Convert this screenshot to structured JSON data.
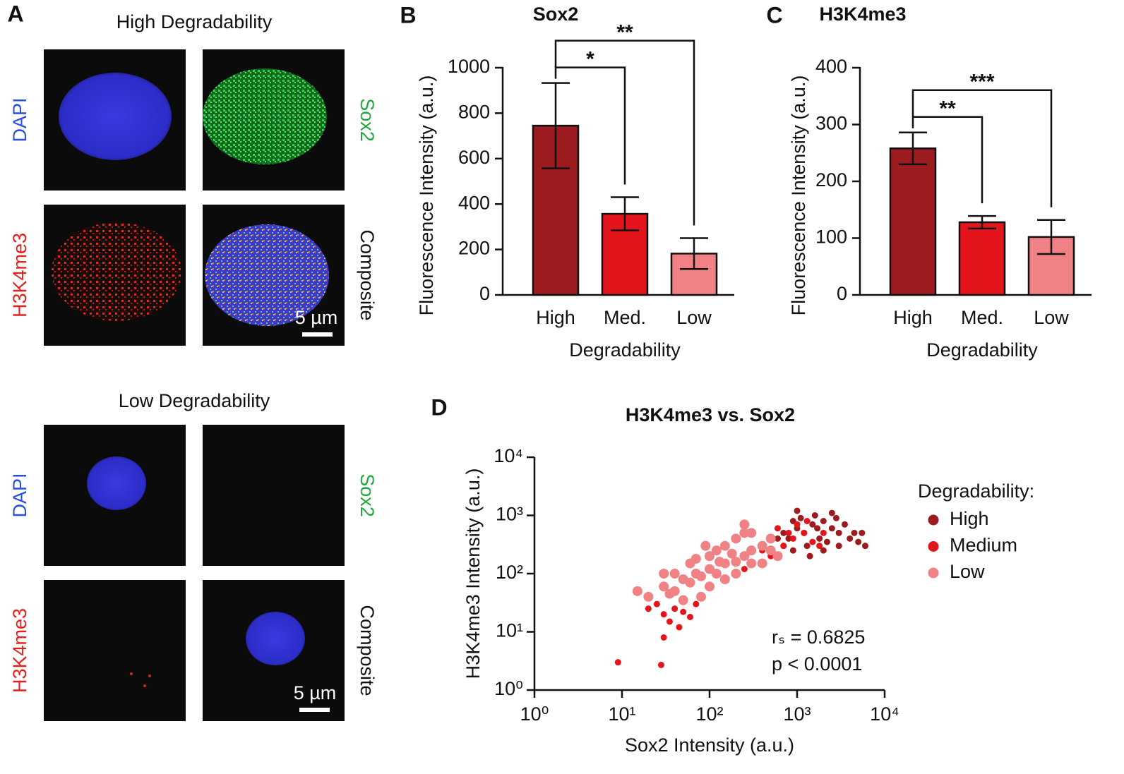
{
  "figure": {
    "panel_labels": [
      "A",
      "B",
      "C",
      "D"
    ]
  },
  "micrographs": [
    {
      "title": "High Degradability",
      "channels": [
        "DAPI",
        "Sox2",
        "H3K4me3",
        "Composite"
      ],
      "scale_bar": "5 µm"
    },
    {
      "title": "Low Degradability",
      "channels": [
        "DAPI",
        "Sox2",
        "H3K4me3",
        "Composite"
      ],
      "scale_bar": "5 µm"
    }
  ],
  "chart_data": [
    {
      "type": "bar",
      "title": "Sox2",
      "xlabel": "Degradability",
      "ylabel": "Fluorescence Intensity (a.u.)",
      "categories": [
        "High",
        "Med.",
        "Low"
      ],
      "values": [
        745,
        357,
        182
      ],
      "errors": [
        188,
        73,
        68
      ],
      "colors": [
        "#9b1b1e",
        "#e3141c",
        "#f08286"
      ],
      "ylim": [
        0,
        1000
      ],
      "yticks": [
        0,
        200,
        400,
        600,
        800,
        1000
      ],
      "comparisons": [
        {
          "from": 0,
          "to": 1,
          "label": "*"
        },
        {
          "from": 0,
          "to": 2,
          "label": "**"
        }
      ]
    },
    {
      "type": "bar",
      "title": "H3K4me3",
      "xlabel": "Degradability",
      "ylabel": "Fluorescence Intensity (a.u.)",
      "categories": [
        "High",
        "Med.",
        "Low"
      ],
      "values": [
        258,
        128,
        102
      ],
      "errors": [
        28,
        11,
        30
      ],
      "colors": [
        "#9b1b1e",
        "#e3141c",
        "#f08286"
      ],
      "ylim": [
        0,
        400
      ],
      "yticks": [
        0,
        100,
        200,
        300,
        400
      ],
      "comparisons": [
        {
          "from": 0,
          "to": 1,
          "label": "**"
        },
        {
          "from": 0,
          "to": 2,
          "label": "***"
        }
      ]
    },
    {
      "type": "scatter",
      "title": "H3K4me3 vs. Sox2",
      "xlabel": "Sox2 Intensity (a.u.)",
      "ylabel": "H3K4me3 Intensity (a.u.)",
      "xscale": "log",
      "yscale": "log",
      "xlim": [
        1,
        10000
      ],
      "ylim": [
        1,
        10000
      ],
      "xticks": [
        {
          "value": 1,
          "label": "10⁰"
        },
        {
          "value": 10,
          "label": "10¹"
        },
        {
          "value": 100,
          "label": "10²"
        },
        {
          "value": 1000,
          "label": "10³"
        },
        {
          "value": 10000,
          "label": "10⁴"
        }
      ],
      "yticks": [
        {
          "value": 1,
          "label": "10⁰"
        },
        {
          "value": 10,
          "label": "10¹"
        },
        {
          "value": 100,
          "label": "10²"
        },
        {
          "value": 1000,
          "label": "10³"
        },
        {
          "value": 10000,
          "label": "10⁴"
        }
      ],
      "legend_title": "Degradability:",
      "legend": "right",
      "series": [
        {
          "name": "High",
          "color": "#9b1b1e",
          "x": [
            800,
            1000,
            1200,
            1500,
            2000,
            2500,
            3000,
            4000,
            5000,
            6000,
            1800,
            1300,
            900,
            700,
            2200,
            3500,
            1600,
            1100,
            2800,
            4500,
            1400,
            2000,
            700,
            600,
            1000,
            3000,
            5500,
            2500,
            1700,
            900
          ],
          "y": [
            400,
            600,
            500,
            700,
            800,
            600,
            500,
            400,
            350,
            300,
            400,
            300,
            250,
            300,
            350,
            700,
            1000,
            900,
            900,
            500,
            200,
            250,
            500,
            400,
            1200,
            300,
            500,
            1100,
            600,
            800
          ]
        },
        {
          "name": "Medium",
          "color": "#e3141c",
          "x": [
            30,
            40,
            50,
            25,
            60,
            35,
            45,
            20,
            80,
            100,
            150,
            200,
            300,
            500,
            700,
            900,
            1200,
            1000,
            1500,
            600,
            400,
            800,
            2000,
            30,
            9,
            28,
            70,
            250,
            1300,
            1800
          ],
          "y": [
            20,
            25,
            22,
            30,
            18,
            15,
            12,
            25,
            40,
            60,
            80,
            100,
            150,
            200,
            300,
            400,
            500,
            700,
            350,
            600,
            250,
            500,
            500,
            8,
            3,
            2.7,
            30,
            120,
            800,
            300
          ]
        },
        {
          "name": "Low",
          "color": "#f08286",
          "x": [
            20,
            30,
            40,
            50,
            60,
            70,
            80,
            100,
            120,
            150,
            200,
            250,
            300,
            400,
            500,
            60,
            40,
            100,
            150,
            200,
            300,
            100,
            150,
            200,
            300,
            80,
            50,
            35,
            500,
            250,
            120,
            180,
            70,
            90,
            400,
            30,
            15,
            250,
            600,
            130
          ],
          "y": [
            40,
            60,
            50,
            80,
            70,
            100,
            90,
            120,
            100,
            150,
            160,
            200,
            250,
            300,
            250,
            150,
            100,
            200,
            300,
            400,
            500,
            60,
            80,
            100,
            150,
            40,
            35,
            45,
            400,
            500,
            250,
            220,
            180,
            300,
            150,
            100,
            50,
            700,
            200,
            160
          ]
        }
      ],
      "annotations": [
        "rₛ = 0.6825",
        "p < 0.0001"
      ]
    }
  ]
}
